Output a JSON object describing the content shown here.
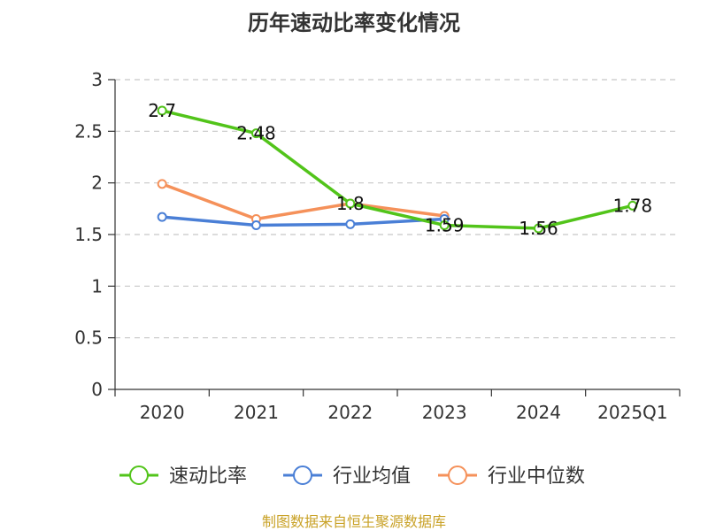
{
  "chart_data": {
    "type": "line",
    "title": "历年速动比率变化情况",
    "categories": [
      "2020",
      "2021",
      "2022",
      "2023",
      "2024",
      "2025Q1"
    ],
    "ylim": [
      0,
      3
    ],
    "yticks": [
      "0",
      "0.5",
      "1",
      "1.5",
      "2",
      "2.5",
      "3"
    ],
    "grid": true,
    "legend_position": "bottom",
    "series": [
      {
        "name": "速动比率",
        "color": "#52c41a",
        "values": [
          2.7,
          2.48,
          1.8,
          1.59,
          1.56,
          1.78
        ],
        "labels": [
          "2.7",
          "2.48",
          "1.8",
          "1.59",
          "1.56",
          "1.78"
        ]
      },
      {
        "name": "行业均值",
        "color": "#4a7fd6",
        "values": [
          1.67,
          1.59,
          1.6,
          1.65,
          null,
          null
        ],
        "labels": []
      },
      {
        "name": "行业中位数",
        "color": "#f5915a",
        "values": [
          1.99,
          1.65,
          1.8,
          1.68,
          null,
          null
        ],
        "labels": []
      }
    ],
    "source": "制图数据来自恒生聚源数据库"
  }
}
